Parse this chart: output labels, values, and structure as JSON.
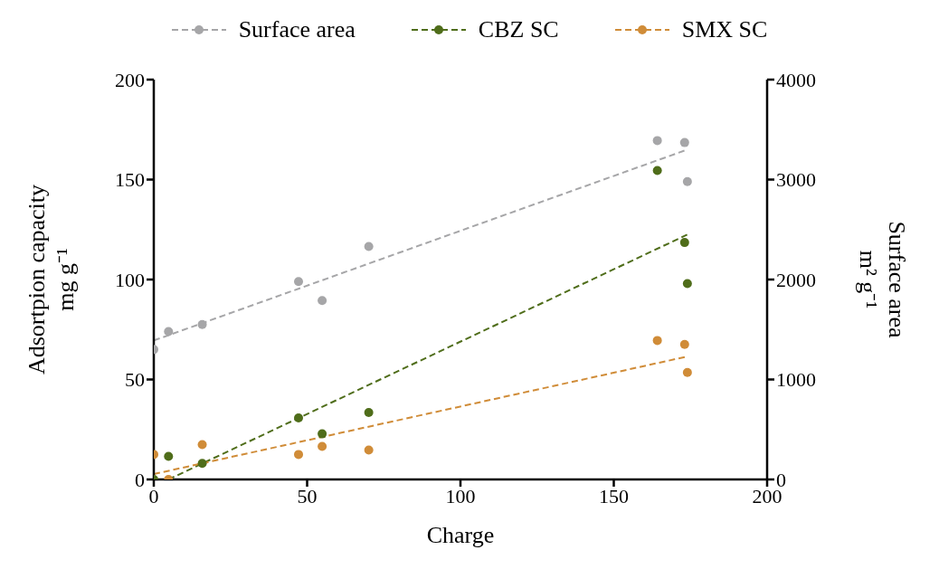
{
  "chart_data": {
    "type": "scatter",
    "xlabel": "Charge",
    "ylabel": "Adsortpion capacity\nmg g⁻¹",
    "y2label": "Surface area\nm² g⁻¹",
    "xlim": [
      0,
      200
    ],
    "xticks": [
      0,
      50,
      100,
      150,
      200
    ],
    "ylim": [
      0,
      200
    ],
    "yticks": [
      0,
      50,
      100,
      150,
      200
    ],
    "y2lim": [
      0,
      4000
    ],
    "y2ticks": [
      0,
      1000,
      2000,
      3000,
      4000
    ],
    "grid": false,
    "legend": "top",
    "marker": "circle",
    "line_style": "dashed",
    "series": [
      {
        "name": "Surface area",
        "axis": "y2",
        "color": "#a6a6a8",
        "x": [
          0,
          4.8,
          15.8,
          47.2,
          54.9,
          70.1,
          164.2,
          173.1,
          174
        ],
        "values": [
          1300,
          1480,
          1550,
          1980,
          1790,
          2330,
          3390,
          3370,
          2980
        ]
      },
      {
        "name": "CBZ SC",
        "color": "#4f6d1a",
        "x": [
          0,
          4.8,
          15.8,
          47.2,
          54.9,
          70.1,
          164.2,
          173.1,
          174
        ],
        "values": [
          0,
          11.5,
          8,
          30.8,
          22.8,
          33.5,
          154.5,
          118.5,
          98
        ]
      },
      {
        "name": "SMX SC",
        "color": "#d08c38",
        "x": [
          0,
          4.8,
          15.8,
          47.2,
          54.9,
          70.1,
          164.2,
          173.1,
          174
        ],
        "values": [
          12.5,
          0,
          17.4,
          12.5,
          16.5,
          14.7,
          69.5,
          67.5,
          53.5
        ]
      },
      {
        "type": "line",
        "marker": "none",
        "axis": "y2",
        "color": "#a6a6a8",
        "x": [
          0,
          174
        ],
        "values": [
          1390,
          3300
        ]
      },
      {
        "type": "line",
        "marker": "none",
        "color": "#4f6d1a",
        "x": [
          4.8,
          174
        ],
        "values": [
          0,
          122.5
        ]
      },
      {
        "type": "line",
        "marker": "none",
        "color": "#d08c38",
        "x": [
          0,
          174
        ],
        "values": [
          2.7,
          61.5
        ]
      }
    ]
  }
}
